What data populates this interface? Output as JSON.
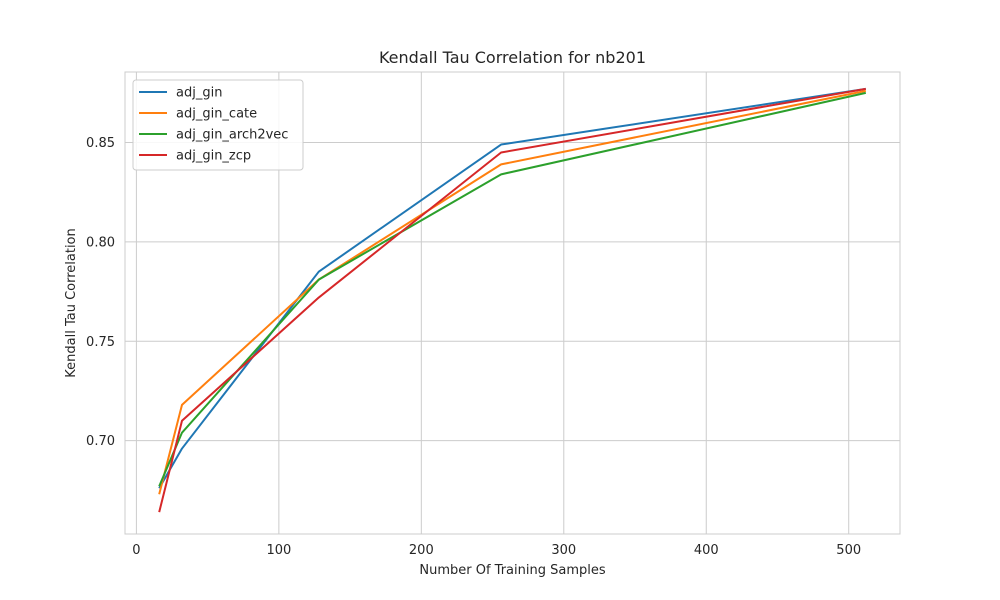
{
  "chart_data": {
    "type": "line",
    "title": "Kendall Tau Correlation for nb201",
    "xlabel": "Number Of Training Samples",
    "ylabel": "Kendall Tau Correlation",
    "xlim": [
      -8,
      536
    ],
    "ylim": [
      0.653,
      0.8855
    ],
    "xticks": [
      0,
      100,
      200,
      300,
      400,
      500
    ],
    "yticks": [
      0.7,
      0.75,
      0.8,
      0.85
    ],
    "xtick_labels": [
      "0",
      "100",
      "200",
      "300",
      "400",
      "500"
    ],
    "ytick_labels": [
      "0.70",
      "0.75",
      "0.80",
      "0.85"
    ],
    "grid": true,
    "legend_position": "top-left",
    "x": [
      16,
      32,
      128,
      256,
      512
    ],
    "series": [
      {
        "name": "adj_gin",
        "color": "#1f77b4",
        "values": [
          0.676,
          0.696,
          0.785,
          0.849,
          0.877
        ]
      },
      {
        "name": "adj_gin_cate",
        "color": "#ff7f0e",
        "values": [
          0.673,
          0.718,
          0.781,
          0.839,
          0.876
        ]
      },
      {
        "name": "adj_gin_arch2vec",
        "color": "#2ca02c",
        "values": [
          0.677,
          0.704,
          0.781,
          0.834,
          0.875
        ]
      },
      {
        "name": "adj_gin_zcp",
        "color": "#d62728",
        "values": [
          0.664,
          0.71,
          0.772,
          0.845,
          0.877
        ]
      }
    ]
  }
}
